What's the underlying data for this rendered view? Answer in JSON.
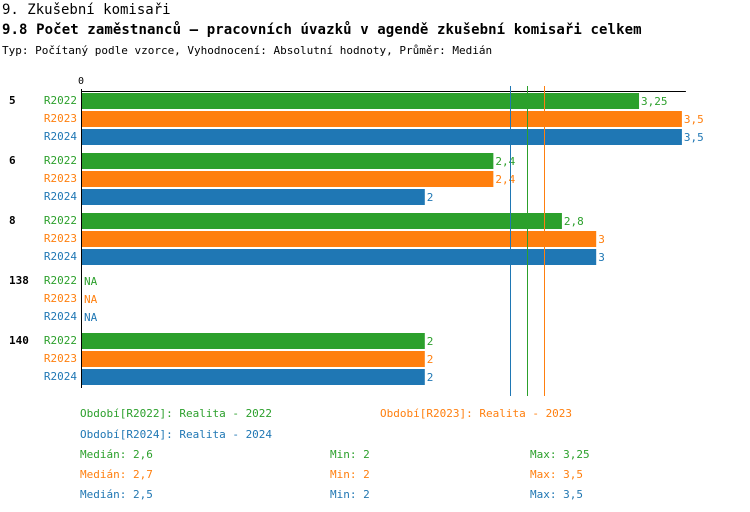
{
  "header": {
    "title": "9. Zkušební komisaři",
    "subtitle": "9.8 Počet zaměstnanců – pracovních úvazků v agendě zkušební komisaři celkem",
    "meta": "Typ: Počítaný podle vzorce, Vyhodnocení: Absolutní hodnoty, Průměr: Medián"
  },
  "colors": {
    "R2022": "#2ca02c",
    "R2023": "#ff7f0e",
    "R2024": "#1f77b4"
  },
  "chart_data": {
    "type": "bar",
    "orientation": "horizontal",
    "axis_zero_label": "0",
    "categories": [
      "5",
      "6",
      "8",
      "138",
      "140"
    ],
    "series": [
      {
        "name": "R2022",
        "values": [
          3.25,
          2.4,
          2.8,
          null,
          2
        ],
        "labels": [
          "3,25",
          "2,4",
          "2,8",
          "NA",
          "2"
        ]
      },
      {
        "name": "R2023",
        "values": [
          3.5,
          2.4,
          3,
          null,
          2
        ],
        "labels": [
          "3,5",
          "2,4",
          "3",
          "NA",
          "2"
        ]
      },
      {
        "name": "R2024",
        "values": [
          3.5,
          2,
          3,
          null,
          2
        ],
        "labels": [
          "3,5",
          "2",
          "3",
          "NA",
          "2"
        ]
      }
    ],
    "medians": {
      "R2022": 2.6,
      "R2023": 2.7,
      "R2024": 2.5
    },
    "xlim": [
      0,
      3.5
    ],
    "grid": false
  },
  "legend": {
    "periods": [
      {
        "series": "R2022",
        "text": "Období[R2022]: Realita - 2022"
      },
      {
        "series": "R2023",
        "text": "Období[R2023]: Realita - 2023"
      },
      {
        "series": "R2024",
        "text": "Období[R2024]: Realita - 2024"
      }
    ],
    "stats": [
      {
        "series": "R2022",
        "median": "Medián: 2,6",
        "min": "Min: 2",
        "max": "Max: 3,25"
      },
      {
        "series": "R2023",
        "median": "Medián: 2,7",
        "min": "Min: 2",
        "max": "Max: 3,5"
      },
      {
        "series": "R2024",
        "median": "Medián: 2,5",
        "min": "Min: 2",
        "max": "Max: 3,5"
      }
    ]
  }
}
